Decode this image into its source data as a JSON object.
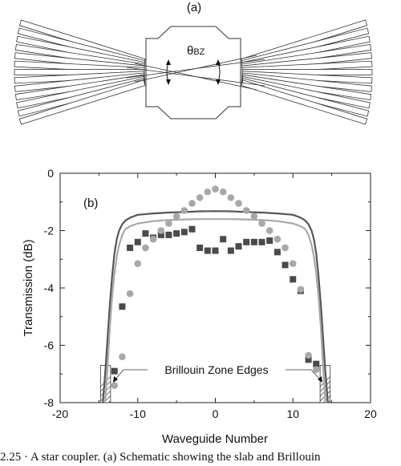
{
  "panel_a": {
    "label": "(a)",
    "angle_label": "θ",
    "angle_subscript": "BZ",
    "waveguides_per_side": 13
  },
  "panel_b": {
    "label": "(b)",
    "annotation": "Brillouin Zone Edges"
  },
  "caption": "2.25 · A star coupler. (a) Schematic showing the slab and Brillouin",
  "colors": {
    "dark_line": "#555555",
    "light_line": "#a8a8a8",
    "squares": "#4a4a4a",
    "circles": "#a8a8a8"
  },
  "chart_data": {
    "type": "scatter",
    "title": "",
    "xlabel": "Waveguide Number",
    "ylabel": "Transmission (dB)",
    "xlim": [
      -20,
      20
    ],
    "ylim": [
      -8,
      0
    ],
    "xticks": [
      -20,
      -10,
      0,
      10,
      20
    ],
    "yticks": [
      0,
      -2,
      -4,
      -6,
      -8
    ],
    "grid": false,
    "series": [
      {
        "marker": "line",
        "color": "#555555",
        "x": [
          -14.5,
          -14.2,
          -13.9,
          -13.6,
          -13.3,
          -13.0,
          -12.7,
          -12.4,
          -12.0,
          -11.6,
          -11.0,
          -10.0,
          -8.0,
          -6.0,
          -4.0,
          -2.0,
          0.0,
          2.0,
          4.0,
          6.0,
          8.0,
          10.0,
          11.0,
          11.6,
          12.0,
          12.4,
          12.7,
          13.0,
          13.3,
          13.6,
          13.9,
          14.2,
          14.5
        ],
        "y": [
          -8.0,
          -7.0,
          -5.8,
          -4.6,
          -3.6,
          -2.8,
          -2.3,
          -2.0,
          -1.78,
          -1.65,
          -1.55,
          -1.45,
          -1.4,
          -1.37,
          -1.35,
          -1.33,
          -1.32,
          -1.33,
          -1.35,
          -1.37,
          -1.4,
          -1.45,
          -1.55,
          -1.65,
          -1.78,
          -2.0,
          -2.3,
          -2.8,
          -3.6,
          -4.6,
          -5.8,
          -7.0,
          -8.0
        ]
      },
      {
        "marker": "line",
        "color": "#a8a8a8",
        "x": [
          -14.2,
          -13.9,
          -13.6,
          -13.3,
          -13.0,
          -12.7,
          -12.4,
          -12.0,
          -11.6,
          -11.0,
          -10.0,
          -8.0,
          -6.0,
          -4.0,
          -2.0,
          0.0,
          2.0,
          4.0,
          6.0,
          8.0,
          10.0,
          11.0,
          11.6,
          12.0,
          12.4,
          12.7,
          13.0,
          13.3,
          13.6,
          13.9,
          14.2
        ],
        "y": [
          -8.0,
          -6.8,
          -5.4,
          -4.3,
          -3.5,
          -2.9,
          -2.5,
          -2.15,
          -1.95,
          -1.85,
          -1.75,
          -1.67,
          -1.63,
          -1.61,
          -1.6,
          -1.6,
          -1.6,
          -1.61,
          -1.63,
          -1.67,
          -1.75,
          -1.85,
          -1.95,
          -2.15,
          -2.5,
          -2.9,
          -3.5,
          -4.3,
          -5.4,
          -6.8,
          -8.0
        ]
      },
      {
        "marker": "square",
        "color": "#4a4a4a",
        "x": [
          -13,
          -12,
          -11,
          -10,
          -9,
          -8,
          -7,
          -6,
          -5,
          -4,
          -3,
          -2,
          -1,
          0,
          1,
          2,
          3,
          4,
          5,
          6,
          7,
          8,
          9,
          10,
          11,
          12,
          13
        ],
        "y": [
          -6.9,
          -4.65,
          -2.6,
          -2.4,
          -2.1,
          -2.25,
          -2.15,
          -2.15,
          -2.1,
          -2.05,
          -1.95,
          -2.6,
          -2.7,
          -2.7,
          -2.3,
          -2.7,
          -2.55,
          -2.4,
          -2.4,
          -2.4,
          -2.35,
          -2.75,
          -3.2,
          -3.7,
          -4.1,
          -6.5,
          -6.65
        ]
      },
      {
        "marker": "circle",
        "color": "#a8a8a8",
        "x": [
          -13,
          -12,
          -11,
          -10,
          -9,
          -8,
          -7,
          -6,
          -5,
          -4,
          -3,
          -2,
          -1,
          0,
          1,
          2,
          3,
          4,
          5,
          6,
          7,
          8,
          9,
          10,
          11,
          12,
          13
        ],
        "y": [
          -7.4,
          -6.4,
          -4.2,
          -3.15,
          -2.6,
          -2.3,
          -2.0,
          -1.75,
          -1.5,
          -1.3,
          -1.05,
          -0.85,
          -0.65,
          -0.55,
          -0.65,
          -0.85,
          -1.05,
          -1.3,
          -1.5,
          -1.75,
          -2.0,
          -2.3,
          -2.6,
          -3.15,
          -4.05,
          -6.35,
          -6.85
        ]
      }
    ]
  }
}
